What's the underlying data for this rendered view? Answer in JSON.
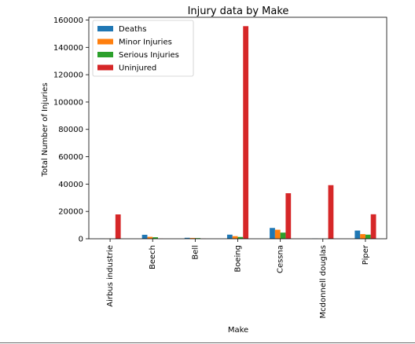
{
  "chart_data": {
    "type": "bar",
    "title": "Injury data by Make",
    "xlabel": "Make",
    "ylabel": "Total Number of Injuries",
    "ylim": [
      0,
      162000
    ],
    "yticks": [
      0,
      20000,
      40000,
      60000,
      80000,
      100000,
      120000,
      140000,
      160000
    ],
    "grid": false,
    "legend_position": "top-left",
    "categories": [
      "Airbus industrie",
      "Beech",
      "Bell",
      "Boeing",
      "Cessna",
      "Mcdonnell douglas",
      "Piper"
    ],
    "series": [
      {
        "name": "Deaths",
        "color": "#1f77b4",
        "values": [
          100,
          2900,
          700,
          3000,
          7900,
          150,
          6000
        ]
      },
      {
        "name": "Minor Injuries",
        "color": "#ff7f0e",
        "values": [
          50,
          1400,
          600,
          1900,
          6600,
          50,
          3400
        ]
      },
      {
        "name": "Serious Injuries",
        "color": "#2ca02c",
        "values": [
          50,
          1100,
          500,
          1300,
          4500,
          50,
          3000
        ]
      },
      {
        "name": "Uninjured",
        "color": "#d62728",
        "values": [
          17800,
          100,
          100,
          155500,
          33300,
          39200,
          17900
        ]
      }
    ]
  }
}
